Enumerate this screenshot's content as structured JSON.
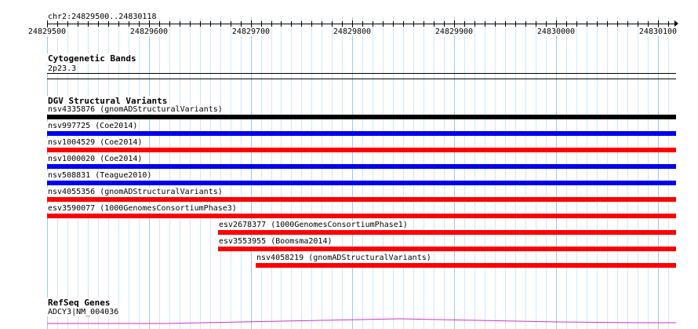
{
  "browser": {
    "region": "chr2:24829500..24830118",
    "start": 24829500,
    "end": 24830118,
    "ruler_labels": [
      "24829500",
      "24829600",
      "24829700",
      "24829800",
      "24829900",
      "24830000",
      "24830100"
    ]
  },
  "tracks": {
    "cyto": {
      "title": "Cytogenetic Bands",
      "band": "2p23.3"
    },
    "dgv": {
      "title": "DGV Structural Variants",
      "features": [
        {
          "label": "nsv4335876 (gnomADStructuralVariants)",
          "color": "#000000",
          "start": 24829500,
          "end": 24830118
        },
        {
          "label": "nsv997725 (Coe2014)",
          "color": "#0000ee",
          "start": 24829500,
          "end": 24830118
        },
        {
          "label": "nsv1004529 (Coe2014)",
          "color": "#ff0000",
          "start": 24829500,
          "end": 24830118
        },
        {
          "label": "nsv1000020 (Coe2014)",
          "color": "#0000ee",
          "start": 24829500,
          "end": 24830118
        },
        {
          "label": "nsv508831 (Teague2010)",
          "color": "#0000ee",
          "start": 24829500,
          "end": 24830118
        },
        {
          "label": "nsv4055356 (gnomADStructuralVariants)",
          "color": "#ff0000",
          "start": 24829500,
          "end": 24830118
        },
        {
          "label": "esv3590077 (1000GenomesConsortiumPhase3)",
          "color": "#ff0000",
          "start": 24829500,
          "end": 24830118
        },
        {
          "label": "esv2678377 (1000GenomesConsortiumPhase1)",
          "color": "#ff0000",
          "start": 24829668,
          "end": 24830118
        },
        {
          "label": "esv3553955 (Boomsma2014)",
          "color": "#ff0000",
          "start": 24829668,
          "end": 24830118
        },
        {
          "label": "nsv4058219 (gnomADStructuralVariants)",
          "color": "#ff0000",
          "start": 24829705,
          "end": 24830118
        }
      ]
    },
    "refseq": {
      "title": "RefSeq Genes",
      "gene": "ADCY3|NM_004036",
      "color": "#cc33cc"
    }
  }
}
